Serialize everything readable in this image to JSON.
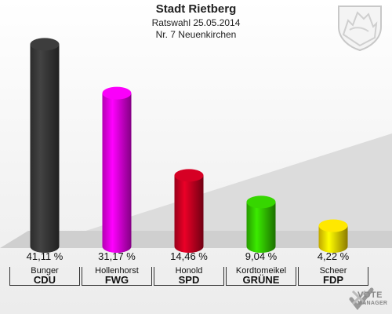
{
  "header": {
    "title": "Stadt Rietberg",
    "subtitle": "Ratswahl 25.05.2014",
    "district": "Nr. 7 Neuenkirchen"
  },
  "chart_data": {
    "type": "bar",
    "title": "Stadt Rietberg",
    "categories": [
      "CDU",
      "FWG",
      "SPD",
      "GRÜNE",
      "FDP"
    ],
    "candidates": [
      "Bunger",
      "Hollenhorst",
      "Honold",
      "Kordtomeikel",
      "Scheer"
    ],
    "values": [
      41.11,
      31.17,
      14.46,
      9.04,
      4.22
    ],
    "value_labels": [
      "41,11 %",
      "31,17 %",
      "14,46 %",
      "9,04 %",
      "4,22 %"
    ],
    "colors": [
      "#3a3a3a",
      "#ee00ee",
      "#cc0022",
      "#33cc00",
      "#ffdd00"
    ],
    "ylim": [
      0,
      45
    ],
    "grid": false,
    "legend": "none"
  },
  "branding": {
    "logo_text_top": "VOTE",
    "logo_text_bottom": "MANAGER",
    "crest_icon": "coat-of-arms-icon"
  }
}
